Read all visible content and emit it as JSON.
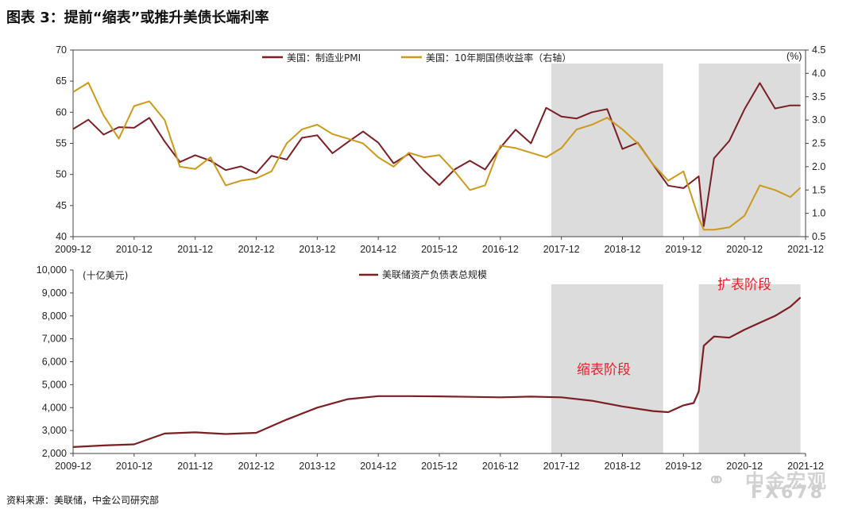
{
  "title": "图表 3：提前“缩表”或推升美债长端利率",
  "source": "资料来源：美联储，中金公司研究部",
  "watermark": {
    "line1": "中金宏观",
    "line2": "FX678",
    "icon": "wechat-icon"
  },
  "colors": {
    "pmi": "#7b1f24",
    "yield": "#cc9a1a",
    "balance": "#7b1f24",
    "shade": "#dcdcdc",
    "annotation": "#e8202a"
  },
  "x_ticks": [
    "2009-12",
    "2010-12",
    "2011-12",
    "2012-12",
    "2013-12",
    "2014-12",
    "2015-12",
    "2016-12",
    "2017-12",
    "2018-12",
    "2019-12",
    "2020-12",
    "2021-12"
  ],
  "chart_data": [
    {
      "type": "line",
      "x": [
        "2009-12",
        "2010-03",
        "2010-06",
        "2010-09",
        "2010-12",
        "2011-03",
        "2011-06",
        "2011-09",
        "2011-12",
        "2012-03",
        "2012-06",
        "2012-09",
        "2012-12",
        "2013-03",
        "2013-06",
        "2013-09",
        "2013-12",
        "2014-03",
        "2014-06",
        "2014-09",
        "2014-12",
        "2015-03",
        "2015-06",
        "2015-09",
        "2015-12",
        "2016-03",
        "2016-06",
        "2016-09",
        "2016-12",
        "2017-03",
        "2017-06",
        "2017-09",
        "2017-12",
        "2018-03",
        "2018-06",
        "2018-09",
        "2018-12",
        "2019-03",
        "2019-06",
        "2019-09",
        "2019-12",
        "2020-03",
        "2020-04",
        "2020-06",
        "2020-09",
        "2020-12",
        "2021-03",
        "2021-06",
        "2021-09",
        "2021-11"
      ],
      "series": [
        {
          "name": "美国：制造业PMI",
          "axis": "left",
          "values": [
            57.3,
            58.8,
            56.4,
            57.6,
            57.5,
            59.1,
            55.3,
            52.0,
            53.1,
            52.2,
            50.7,
            51.3,
            50.2,
            53.0,
            52.4,
            55.9,
            56.3,
            53.4,
            55.2,
            56.9,
            55.1,
            51.8,
            53.3,
            50.6,
            48.3,
            50.8,
            52.2,
            50.8,
            54.3,
            57.2,
            55.0,
            60.7,
            59.3,
            59.0,
            60.0,
            60.5,
            54.1,
            55.1,
            51.6,
            48.2,
            47.8,
            49.7,
            41.7,
            52.6,
            55.4,
            60.5,
            64.7,
            60.6,
            61.1,
            61.1
          ]
        },
        {
          "name": "美国：10年期国债收益率（右轴）",
          "axis": "right",
          "values": [
            3.6,
            3.8,
            3.1,
            2.6,
            3.3,
            3.4,
            3.0,
            2.0,
            1.95,
            2.2,
            1.6,
            1.7,
            1.75,
            1.9,
            2.5,
            2.8,
            2.9,
            2.7,
            2.6,
            2.5,
            2.2,
            2.0,
            2.3,
            2.2,
            2.25,
            1.9,
            1.5,
            1.6,
            2.45,
            2.4,
            2.3,
            2.2,
            2.4,
            2.8,
            2.9,
            3.05,
            2.8,
            2.5,
            2.05,
            1.7,
            1.9,
            0.9,
            0.65,
            0.65,
            0.7,
            0.95,
            1.6,
            1.5,
            1.35,
            1.55
          ]
        }
      ],
      "ylim_left": [
        40,
        70
      ],
      "yticks_left": [
        "40",
        "45",
        "50",
        "55",
        "60",
        "65",
        "70"
      ],
      "ylim_right": [
        0.5,
        4.5
      ],
      "yticks_right": [
        "0.5",
        "1.0",
        "1.5",
        "2.0",
        "2.5",
        "3.0",
        "3.5",
        "4.0",
        "4.5"
      ],
      "right_unit": "(%)",
      "legend": "top"
    },
    {
      "type": "line",
      "x": [
        "2009-12",
        "2010-06",
        "2010-12",
        "2011-06",
        "2011-12",
        "2012-06",
        "2012-12",
        "2013-06",
        "2013-12",
        "2014-06",
        "2014-12",
        "2015-06",
        "2015-12",
        "2016-06",
        "2016-12",
        "2017-06",
        "2017-12",
        "2018-06",
        "2018-12",
        "2019-06",
        "2019-09",
        "2019-12",
        "2020-02",
        "2020-03",
        "2020-04",
        "2020-06",
        "2020-09",
        "2020-12",
        "2021-03",
        "2021-06",
        "2021-09",
        "2021-11"
      ],
      "series": [
        {
          "name": "美联储资产负债表总规模",
          "values": [
            2280,
            2350,
            2400,
            2870,
            2920,
            2850,
            2900,
            3480,
            4000,
            4370,
            4500,
            4500,
            4490,
            4470,
            4450,
            4480,
            4450,
            4300,
            4050,
            3850,
            3800,
            4100,
            4200,
            4700,
            6700,
            7100,
            7050,
            7400,
            7700,
            8000,
            8400,
            8800
          ]
        }
      ],
      "unit": "(十亿美元)",
      "ylim": [
        2000,
        10000
      ],
      "yticks": [
        "2,000",
        "3,000",
        "4,000",
        "5,000",
        "6,000",
        "7,000",
        "8,000",
        "9,000",
        "10,000"
      ],
      "legend": "top"
    }
  ],
  "annotations": {
    "shrink_label": "缩表阶段",
    "expand_label": "扩表阶段"
  },
  "shaded_periods": [
    {
      "start": "2017-10",
      "end": "2019-08"
    },
    {
      "start": "2020-03",
      "end": "2021-11"
    }
  ]
}
